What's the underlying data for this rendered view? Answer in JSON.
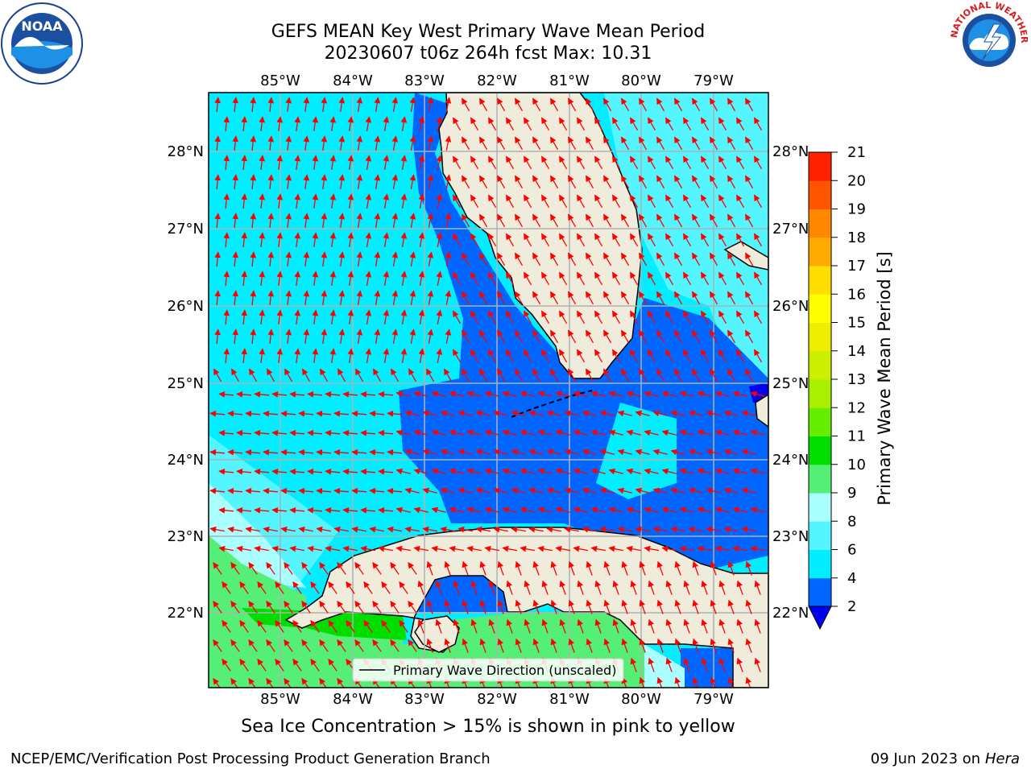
{
  "title_line1": "GEFS MEAN Key West Primary Wave Mean Period",
  "title_line2": "20230607 t06z 264h fcst   Max: 10.31",
  "map": {
    "lon_labels": [
      "85°W",
      "84°W",
      "83°W",
      "82°W",
      "81°W",
      "80°W",
      "79°W"
    ],
    "lat_labels": [
      "28°N",
      "27°N",
      "26°N",
      "25°N",
      "24°N",
      "23°N",
      "22°N"
    ],
    "legend_label": "Primary Wave Direction (unscaled)",
    "land_color": "#efecdc",
    "arrow_color": "#ff0000"
  },
  "colorbar": {
    "label": "Primary Wave Mean Period [s]",
    "ticks": [
      "2",
      "4",
      "6",
      "8",
      "9",
      "10",
      "11",
      "12",
      "13",
      "14",
      "15",
      "16",
      "17",
      "18",
      "19",
      "20",
      "21"
    ],
    "colors": [
      "#0066ff",
      "#00eeff",
      "#55f5ff",
      "#aaffff",
      "#55ee77",
      "#00dd00",
      "#66ee00",
      "#aaee00",
      "#ccee00",
      "#eeee00",
      "#ffff00",
      "#ffdd00",
      "#ffaa00",
      "#ff8800",
      "#ff5500",
      "#ff2200"
    ],
    "extend_color": "#0000ee"
  },
  "note": "Sea Ice Concentration > 15% is shown in pink to yellow",
  "footer": {
    "left": "NCEP/EMC/Verification Post Processing Product Generation Branch",
    "right_date": "09 Jun 2023 on",
    "right_machine": "Hera"
  },
  "logos": {
    "noaa_text": "NOAA",
    "nws_text": "NATIONAL WEATHER SERVICE"
  }
}
